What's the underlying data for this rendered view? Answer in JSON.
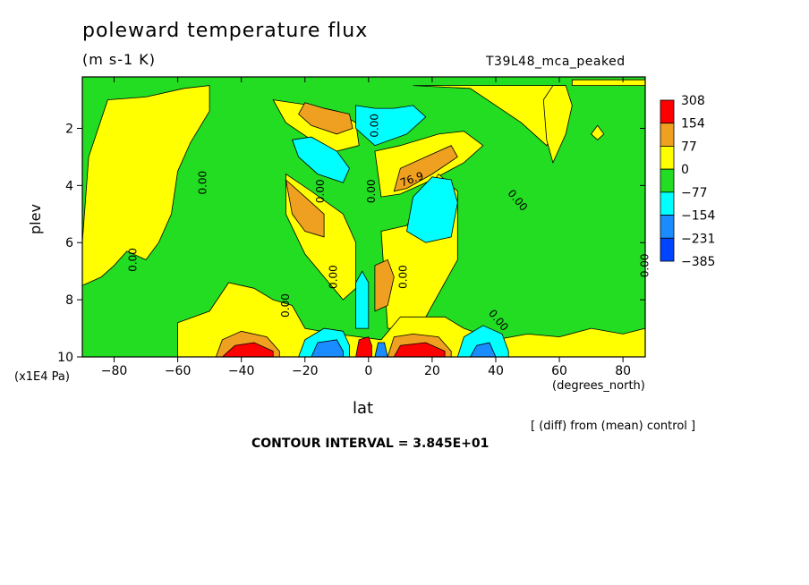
{
  "chart_data": {
    "type": "heatmap",
    "title": "poleward temperature flux",
    "units": "(m s-1 K)",
    "run_name": "T39L48_mca_peaked",
    "xlabel": "lat",
    "x_units": "(degrees_north)",
    "ylabel": "plev",
    "y_units": "(x1E4 Pa)",
    "note": "[ (diff) from (mean) control ]",
    "contour_interval": "CONTOUR INTERVAL = 3.845E+01",
    "xlim": [
      -90,
      87
    ],
    "ylim": [
      10,
      0.2
    ],
    "x_ticks": [
      -80,
      -60,
      -40,
      -20,
      0,
      20,
      40,
      60,
      80
    ],
    "y_ticks": [
      2,
      4,
      6,
      8,
      10
    ],
    "colorbar": {
      "labels": [
        "308",
        "154",
        "77",
        "0",
        "−77",
        "−154",
        "−231",
        "−385"
      ],
      "colors": [
        "#ff0000",
        "#f0a020",
        "#ffff00",
        "#22dd22",
        "#00ffff",
        "#1a8cff",
        "#0044ff"
      ]
    },
    "contour_labels": [
      "0.00",
      "0.00",
      "0.00",
      "0.00",
      "0.00",
      "0.00",
      "0.00",
      "0.00",
      "0.00",
      "76.9",
      "0.00",
      "0.00"
    ],
    "regions": [
      {
        "level": "yellow",
        "path": [
          [
            -90,
            6
          ],
          [
            -88,
            3
          ],
          [
            -82,
            1
          ],
          [
            -70,
            0.9
          ],
          [
            -58,
            0.6
          ],
          [
            -50,
            0.5
          ],
          [
            -50,
            1.4
          ],
          [
            -56,
            2.5
          ],
          [
            -60,
            3.5
          ],
          [
            -62,
            5
          ],
          [
            -66,
            6
          ],
          [
            -70,
            6.6
          ],
          [
            -76,
            6.3
          ],
          [
            -80,
            6.8
          ],
          [
            -84,
            7.2
          ],
          [
            -90,
            7.5
          ]
        ]
      },
      {
        "level": "yellow",
        "path": [
          [
            -30,
            1
          ],
          [
            -18,
            1.2
          ],
          [
            -10,
            1.4
          ],
          [
            -4,
            1.8
          ],
          [
            -3,
            2.6
          ],
          [
            -10,
            2.8
          ],
          [
            -18,
            2.4
          ],
          [
            -26,
            1.8
          ]
        ]
      },
      {
        "level": "yellow",
        "path": [
          [
            -26,
            3.6
          ],
          [
            -18,
            4.2
          ],
          [
            -8,
            5
          ],
          [
            -4,
            6
          ],
          [
            -4,
            7.6
          ],
          [
            -8,
            8
          ],
          [
            -14,
            7.2
          ],
          [
            -20,
            6.4
          ],
          [
            -26,
            5
          ]
        ]
      },
      {
        "level": "yellow",
        "path": [
          [
            2,
            2.8
          ],
          [
            10,
            2.6
          ],
          [
            22,
            2.2
          ],
          [
            30,
            2.1
          ],
          [
            36,
            2.6
          ],
          [
            30,
            3.2
          ],
          [
            20,
            3.8
          ],
          [
            10,
            4.3
          ],
          [
            4,
            4.4
          ]
        ]
      },
      {
        "level": "yellow",
        "path": [
          [
            4,
            5.6
          ],
          [
            12,
            5.4
          ],
          [
            22,
            3.6
          ],
          [
            28,
            4.2
          ],
          [
            28,
            6.6
          ],
          [
            24,
            7.4
          ],
          [
            18,
            8.6
          ],
          [
            10,
            9
          ],
          [
            6,
            9
          ]
        ]
      },
      {
        "level": "yellow",
        "path": [
          [
            14,
            0.5
          ],
          [
            32,
            0.6
          ],
          [
            40,
            1.2
          ],
          [
            48,
            1.8
          ],
          [
            56,
            2.6
          ],
          [
            62,
            1.4
          ],
          [
            62,
            0.5
          ]
        ]
      },
      {
        "level": "yellow",
        "path": [
          [
            -60,
            8.8
          ],
          [
            -50,
            8.4
          ],
          [
            -44,
            7.4
          ],
          [
            -36,
            7.6
          ],
          [
            -30,
            8
          ],
          [
            -24,
            8.2
          ],
          [
            -20,
            9
          ],
          [
            -10,
            9.2
          ],
          [
            4,
            9.4
          ],
          [
            10,
            8.6
          ],
          [
            24,
            8.6
          ],
          [
            30,
            9
          ],
          [
            40,
            9.4
          ],
          [
            50,
            9.2
          ],
          [
            60,
            9.3
          ],
          [
            70,
            9
          ],
          [
            80,
            9.2
          ],
          [
            87,
            9
          ],
          [
            87,
            10
          ],
          [
            -60,
            10
          ]
        ]
      },
      {
        "level": "orange",
        "path": [
          [
            -20,
            1.1
          ],
          [
            -14,
            1.3
          ],
          [
            -6,
            1.5
          ],
          [
            -5,
            2
          ],
          [
            -10,
            2.2
          ],
          [
            -18,
            1.9
          ],
          [
            -22,
            1.5
          ]
        ]
      },
      {
        "level": "orange",
        "path": [
          [
            -26,
            3.8
          ],
          [
            -20,
            4.4
          ],
          [
            -14,
            5
          ],
          [
            -14,
            5.8
          ],
          [
            -20,
            5.6
          ],
          [
            -24,
            5
          ]
        ]
      },
      {
        "level": "orange",
        "path": [
          [
            10,
            3.4
          ],
          [
            18,
            3
          ],
          [
            26,
            2.6
          ],
          [
            28,
            3
          ],
          [
            20,
            3.6
          ],
          [
            12,
            4.1
          ],
          [
            8,
            4.2
          ]
        ]
      },
      {
        "level": "orange",
        "path": [
          [
            2,
            6.8
          ],
          [
            6,
            6.6
          ],
          [
            8,
            7.2
          ],
          [
            6,
            8.2
          ],
          [
            2,
            8.4
          ]
        ]
      },
      {
        "level": "orange",
        "path": [
          [
            -48,
            10
          ],
          [
            -46,
            9.4
          ],
          [
            -40,
            9.1
          ],
          [
            -32,
            9.3
          ],
          [
            -28,
            9.8
          ],
          [
            -28,
            10
          ]
        ]
      },
      {
        "level": "orange",
        "path": [
          [
            6,
            10
          ],
          [
            8,
            9.3
          ],
          [
            14,
            9.2
          ],
          [
            22,
            9.3
          ],
          [
            26,
            9.8
          ],
          [
            26,
            10
          ]
        ]
      },
      {
        "level": "red",
        "path": [
          [
            -46,
            10
          ],
          [
            -42,
            9.6
          ],
          [
            -36,
            9.5
          ],
          [
            -30,
            9.8
          ],
          [
            -30,
            10
          ]
        ]
      },
      {
        "level": "red",
        "path": [
          [
            8,
            10
          ],
          [
            10,
            9.6
          ],
          [
            18,
            9.5
          ],
          [
            24,
            9.8
          ],
          [
            24,
            10
          ]
        ]
      },
      {
        "level": "red",
        "path": [
          [
            -4,
            10
          ],
          [
            -3,
            9.4
          ],
          [
            0,
            9.3
          ],
          [
            1,
            9.6
          ],
          [
            1,
            10
          ]
        ]
      },
      {
        "level": "cyan",
        "path": [
          [
            -24,
            2.4
          ],
          [
            -18,
            2.3
          ],
          [
            -10,
            2.8
          ],
          [
            -6,
            3.4
          ],
          [
            -8,
            3.9
          ],
          [
            -16,
            3.6
          ],
          [
            -22,
            3
          ]
        ]
      },
      {
        "level": "cyan",
        "path": [
          [
            -4,
            1.2
          ],
          [
            2,
            1.3
          ],
          [
            8,
            1.3
          ],
          [
            14,
            1.2
          ],
          [
            18,
            1.6
          ],
          [
            12,
            2.2
          ],
          [
            2,
            2.6
          ],
          [
            -4,
            2
          ]
        ]
      },
      {
        "level": "cyan",
        "path": [
          [
            14,
            4.4
          ],
          [
            20,
            3.7
          ],
          [
            26,
            3.8
          ],
          [
            28,
            4.6
          ],
          [
            26,
            5.8
          ],
          [
            18,
            6
          ],
          [
            12,
            5.6
          ]
        ]
      },
      {
        "level": "cyan",
        "path": [
          [
            -4,
            7.4
          ],
          [
            -2,
            7
          ],
          [
            0,
            7.4
          ],
          [
            0,
            9
          ],
          [
            -4,
            9
          ]
        ]
      },
      {
        "level": "cyan",
        "path": [
          [
            -22,
            10
          ],
          [
            -20,
            9.4
          ],
          [
            -14,
            9
          ],
          [
            -8,
            9.1
          ],
          [
            -6,
            9.6
          ],
          [
            -6,
            10
          ]
        ]
      },
      {
        "level": "cyan",
        "path": [
          [
            28,
            10
          ],
          [
            30,
            9.3
          ],
          [
            36,
            8.9
          ],
          [
            42,
            9.2
          ],
          [
            44,
            9.8
          ],
          [
            44,
            10
          ]
        ]
      },
      {
        "level": "blue",
        "path": [
          [
            -18,
            10
          ],
          [
            -16,
            9.5
          ],
          [
            -10,
            9.4
          ],
          [
            -8,
            9.8
          ],
          [
            -8,
            10
          ]
        ]
      },
      {
        "level": "blue",
        "path": [
          [
            32,
            10
          ],
          [
            34,
            9.6
          ],
          [
            38,
            9.5
          ],
          [
            40,
            10
          ]
        ]
      },
      {
        "level": "blue",
        "path": [
          [
            2,
            10
          ],
          [
            3,
            9.5
          ],
          [
            5,
            9.5
          ],
          [
            6,
            10
          ]
        ]
      },
      {
        "level": "yellow",
        "path": [
          [
            55,
            1
          ],
          [
            58,
            0.5
          ],
          [
            62,
            0.5
          ],
          [
            64,
            1.2
          ],
          [
            62,
            2.2
          ],
          [
            58,
            3.2
          ],
          [
            56,
            2.4
          ]
        ]
      },
      {
        "level": "yellow",
        "path": [
          [
            64,
            0.3
          ],
          [
            87,
            0.3
          ],
          [
            87,
            0.5
          ],
          [
            64,
            0.5
          ]
        ]
      },
      {
        "level": "yellow",
        "path": [
          [
            70,
            2.2
          ],
          [
            72,
            1.9
          ],
          [
            74,
            2.2
          ],
          [
            72,
            2.4
          ]
        ]
      }
    ]
  }
}
